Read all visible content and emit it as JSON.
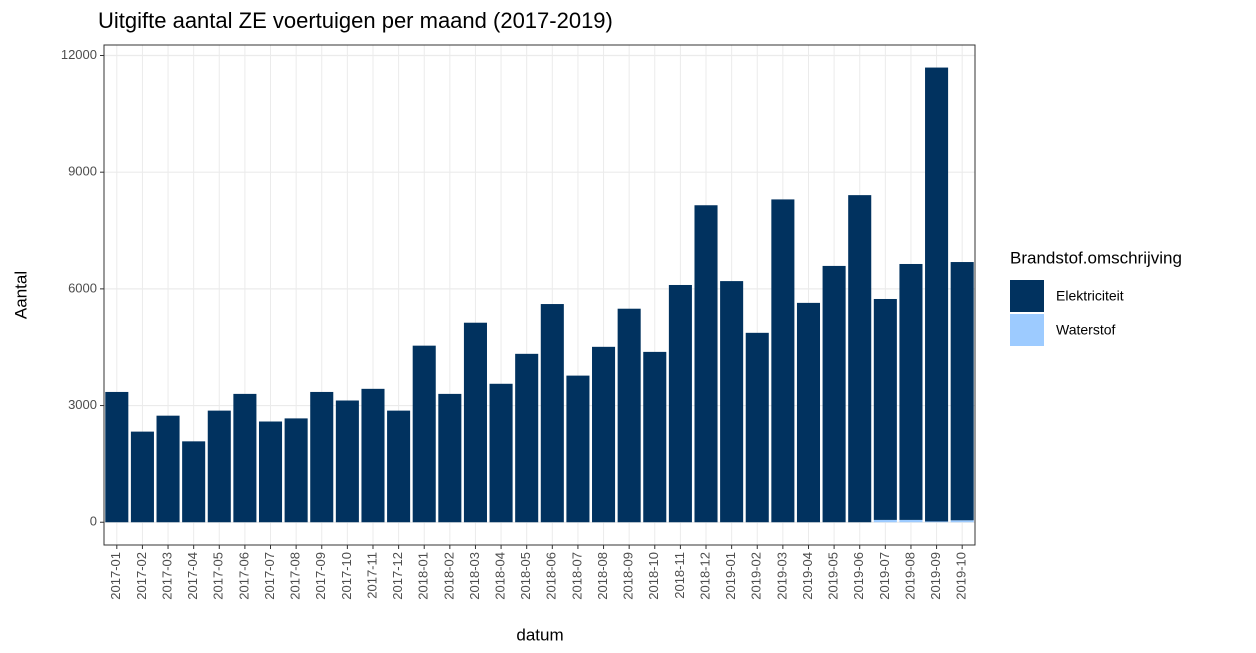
{
  "chart_data": {
    "type": "stacked_bar",
    "title": "Uitgifte aantal ZE voertuigen per maand (2017-2019)",
    "x_label": "datum",
    "y_label": "Aantal",
    "legend_title": "Brandstof.omschrijving",
    "legend_position": "right",
    "grid": true,
    "categories": [
      "2017-01",
      "2017-02",
      "2017-03",
      "2017-04",
      "2017-05",
      "2017-06",
      "2017-07",
      "2017-08",
      "2017-09",
      "2017-10",
      "2017-11",
      "2017-12",
      "2018-01",
      "2018-02",
      "2018-03",
      "2018-04",
      "2018-05",
      "2018-06",
      "2018-07",
      "2018-08",
      "2018-09",
      "2018-10",
      "2018-11",
      "2018-12",
      "2019-01",
      "2019-02",
      "2019-03",
      "2019-04",
      "2019-05",
      "2019-06",
      "2019-07",
      "2019-08",
      "2019-09",
      "2019-10"
    ],
    "series": [
      {
        "name": "Elektriciteit",
        "color": "#01325f",
        "values": [
          3350,
          2330,
          2740,
          2080,
          2870,
          3300,
          2590,
          2670,
          3350,
          3130,
          3430,
          2870,
          4540,
          3300,
          5130,
          3560,
          4330,
          5610,
          3770,
          4510,
          5490,
          4380,
          6100,
          8150,
          6200,
          4870,
          8300,
          5640,
          6590,
          8410,
          5680,
          6580,
          11670,
          6640
        ]
      },
      {
        "name": "Waterstof",
        "color": "#9dcbff",
        "values": [
          0,
          0,
          0,
          0,
          0,
          0,
          0,
          0,
          0,
          0,
          0,
          0,
          0,
          0,
          0,
          0,
          0,
          0,
          0,
          0,
          0,
          0,
          0,
          0,
          0,
          0,
          0,
          0,
          0,
          0,
          60,
          60,
          20,
          50
        ]
      }
    ],
    "ylim": [
      -585,
      12270
    ],
    "yticks": [
      0,
      3000,
      6000,
      9000,
      12000
    ]
  }
}
